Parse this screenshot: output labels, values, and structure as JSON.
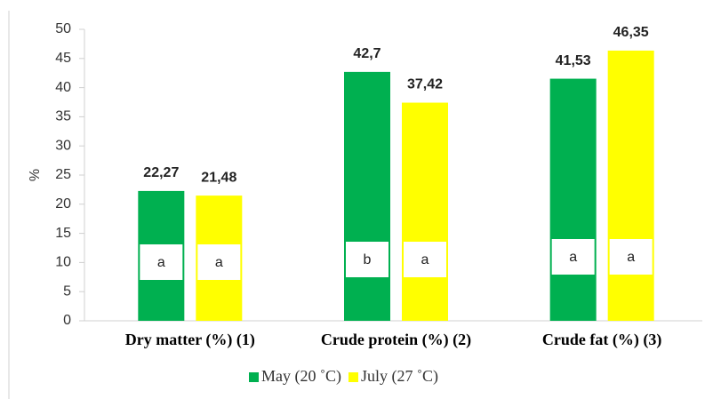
{
  "chart_data": {
    "type": "bar",
    "categories": [
      "Dry matter (%) (1)",
      "Crude protein (%) (2)",
      "Crude fat (%) (3)"
    ],
    "series": [
      {
        "name": "May (20 ˚C)",
        "color": "#00b050",
        "values": [
          22.27,
          42.7,
          41.53
        ],
        "value_labels": [
          "22,27",
          "42,7",
          "41,53"
        ],
        "letters": [
          "a",
          "b",
          "a"
        ]
      },
      {
        "name": "July (27 ˚C)",
        "color": "#ffff00",
        "values": [
          21.48,
          37.42,
          46.35
        ],
        "value_labels": [
          "21,48",
          "37,42",
          "46,35"
        ],
        "letters": [
          "a",
          "a",
          "a"
        ]
      }
    ],
    "ylabel": "%",
    "ylim": [
      0,
      50
    ],
    "yticks": [
      0,
      5,
      10,
      15,
      20,
      25,
      30,
      35,
      40,
      45,
      50
    ],
    "legend": "bottom"
  }
}
